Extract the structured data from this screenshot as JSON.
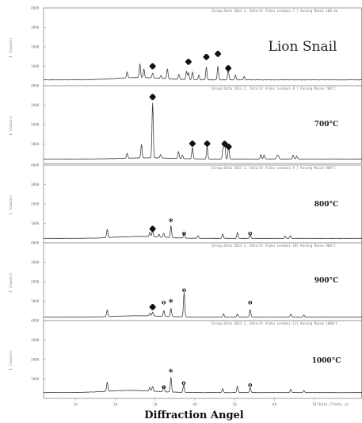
{
  "figure_title": "Lion Snail",
  "x_axis_title": "Diffraction Angel",
  "chart_data": {
    "type": "line",
    "title": "Lion Snail",
    "xlabel": "Diffraction Angel",
    "x_unit_label": "Theta-2Theta (d",
    "xlim": [
      2,
      82
    ],
    "xticks": [
      10,
      20,
      30,
      40,
      50,
      60,
      70
    ],
    "ylabel": "I (Counts)",
    "grid": false,
    "marker_legend": {
      "❖": "",
      "*": "",
      "o": ""
    },
    "panels": [
      {
        "label": "",
        "header": "[Group:Data 2013 2, Data:Dr Aldes Lesbani-7 ] Kosong Macan 100 mo",
        "ylim": [
          0,
          4000
        ],
        "yticks": [
          1000,
          2000,
          3000,
          4000
        ],
        "ytick_labels": [
          "1000",
          "2000",
          "3000",
          "4000"
        ],
        "baseline": 300,
        "noise": 22,
        "hump": {
          "center": 26,
          "height": 120
        },
        "peaks": [
          [
            23.0,
            300
          ],
          [
            26.2,
            700
          ],
          [
            27.2,
            450
          ],
          [
            29.4,
            250
          ],
          [
            31.5,
            150
          ],
          [
            33.1,
            500
          ],
          [
            36.0,
            260
          ],
          [
            37.9,
            420
          ],
          [
            38.4,
            350
          ],
          [
            39.4,
            400
          ],
          [
            41.0,
            250
          ],
          [
            42.9,
            650
          ],
          [
            45.8,
            700
          ],
          [
            48.4,
            500
          ],
          [
            50.2,
            250
          ],
          [
            52.4,
            180
          ]
        ],
        "markers": [
          {
            "s": "❖",
            "x": 29.4,
            "y": 1000
          },
          {
            "s": "❖",
            "x": 38.4,
            "y": 1230
          },
          {
            "s": "❖",
            "x": 42.9,
            "y": 1480
          },
          {
            "s": "❖",
            "x": 45.8,
            "y": 1640
          },
          {
            "s": "❖",
            "x": 48.4,
            "y": 900
          }
        ]
      },
      {
        "label": "700°C",
        "header": "[Group:Data 2013 2, Data:Dr Aldes Lesbani-8 ] Kosong Macan 700°C",
        "ylim": [
          0,
          4000
        ],
        "yticks": [
          1000,
          2000,
          3000,
          4000
        ],
        "ytick_labels": [
          "1000",
          "2000",
          "3000",
          "4000"
        ],
        "baseline": 230,
        "noise": 20,
        "hump": {
          "center": 28,
          "height": 60
        },
        "peaks": [
          [
            23.0,
            250
          ],
          [
            26.6,
            700
          ],
          [
            29.4,
            2820
          ],
          [
            31.4,
            180
          ],
          [
            35.9,
            360
          ],
          [
            36.9,
            180
          ],
          [
            39.4,
            580
          ],
          [
            43.1,
            620
          ],
          [
            47.1,
            550
          ],
          [
            47.5,
            800
          ],
          [
            48.5,
            600
          ],
          [
            56.6,
            230
          ],
          [
            57.4,
            200
          ],
          [
            60.7,
            180
          ],
          [
            61.0,
            150
          ],
          [
            64.7,
            200
          ],
          [
            65.6,
            150
          ]
        ],
        "markers": [
          {
            "s": "❖",
            "x": 29.4,
            "y": 3420
          },
          {
            "s": "❖",
            "x": 39.4,
            "y": 1020
          },
          {
            "s": "❖",
            "x": 43.1,
            "y": 1020
          },
          {
            "s": "❖",
            "x": 47.5,
            "y": 1010
          },
          {
            "s": "❖",
            "x": 48.5,
            "y": 860
          }
        ]
      },
      {
        "label": "800°C",
        "header": "[Group:Data 2013 2, Data:Dr Aldes Lesbani-9 ] Kosong Macan 800°C",
        "ylim": [
          0,
          4000
        ],
        "yticks": [
          1000,
          2000,
          3000,
          4000
        ],
        "ytick_labels": [
          "1000",
          "2000",
          "3000",
          "4000"
        ],
        "baseline": 230,
        "noise": 20,
        "hump": {
          "center": 26,
          "height": 100
        },
        "peaks": [
          [
            18.0,
            420
          ],
          [
            28.7,
            230
          ],
          [
            29.4,
            300
          ],
          [
            31.0,
            150
          ],
          [
            32.2,
            200
          ],
          [
            34.0,
            600
          ],
          [
            37.3,
            220
          ],
          [
            40.8,
            140
          ],
          [
            47.0,
            220
          ],
          [
            50.7,
            300
          ],
          [
            53.9,
            180
          ],
          [
            62.7,
            120
          ],
          [
            64.0,
            130
          ]
        ],
        "markers": [
          {
            "s": "❖",
            "x": 29.4,
            "y": 720
          },
          {
            "s": "*",
            "x": 34.0,
            "y": 1150
          },
          {
            "s": "o",
            "x": 37.3,
            "y": 520
          },
          {
            "s": "o",
            "x": 53.9,
            "y": 520
          }
        ]
      },
      {
        "label": "900°C",
        "header": "[Group:Data 2013 2, Data:Dr Aldes Lesbani-10] Kosong Macan 900°C",
        "ylim": [
          0,
          4000
        ],
        "yticks": [
          1000,
          2000,
          3000,
          4000
        ],
        "ytick_labels": [
          "1000",
          "2000",
          "3000",
          "4000"
        ],
        "baseline": 180,
        "noise": 18,
        "hump": {
          "center": 26,
          "height": 70
        },
        "peaks": [
          [
            18.0,
            350
          ],
          [
            28.7,
            140
          ],
          [
            29.4,
            200
          ],
          [
            32.2,
            290
          ],
          [
            34.0,
            420
          ],
          [
            37.3,
            1250
          ],
          [
            47.2,
            180
          ],
          [
            50.7,
            160
          ],
          [
            53.9,
            380
          ],
          [
            64.1,
            160
          ],
          [
            67.4,
            110
          ]
        ],
        "markers": [
          {
            "s": "❖",
            "x": 29.4,
            "y": 700
          },
          {
            "s": "o",
            "x": 32.2,
            "y": 950
          },
          {
            "s": "*",
            "x": 34.0,
            "y": 1000
          },
          {
            "s": "o",
            "x": 37.3,
            "y": 1600
          },
          {
            "s": "o",
            "x": 53.9,
            "y": 950
          }
        ]
      },
      {
        "label": "1000°C",
        "header": "[Group:Data 2013 2, Data:Dr Aldes Lesbani-11] Kosong Macan 1000°C",
        "ylim": [
          0,
          4000
        ],
        "yticks": [
          1000,
          2000,
          3000,
          4000
        ],
        "ytick_labels": [
          "1000",
          "2000",
          "3000",
          "4000"
        ],
        "baseline": 300,
        "noise": 22,
        "hump": {
          "center": 24,
          "height": 110
        },
        "peaks": [
          [
            18.0,
            480
          ],
          [
            28.7,
            190
          ],
          [
            29.4,
            230
          ],
          [
            32.2,
            260
          ],
          [
            34.0,
            750
          ],
          [
            37.2,
            380
          ],
          [
            47.0,
            200
          ],
          [
            50.7,
            330
          ],
          [
            53.9,
            250
          ],
          [
            64.1,
            170
          ],
          [
            67.4,
            120
          ]
        ],
        "markers": [
          {
            "s": "o",
            "x": 32.2,
            "y": 620
          },
          {
            "s": "*",
            "x": 34.0,
            "y": 1400
          },
          {
            "s": "o",
            "x": 37.2,
            "y": 820
          },
          {
            "s": "o",
            "x": 53.9,
            "y": 710
          }
        ]
      }
    ]
  }
}
